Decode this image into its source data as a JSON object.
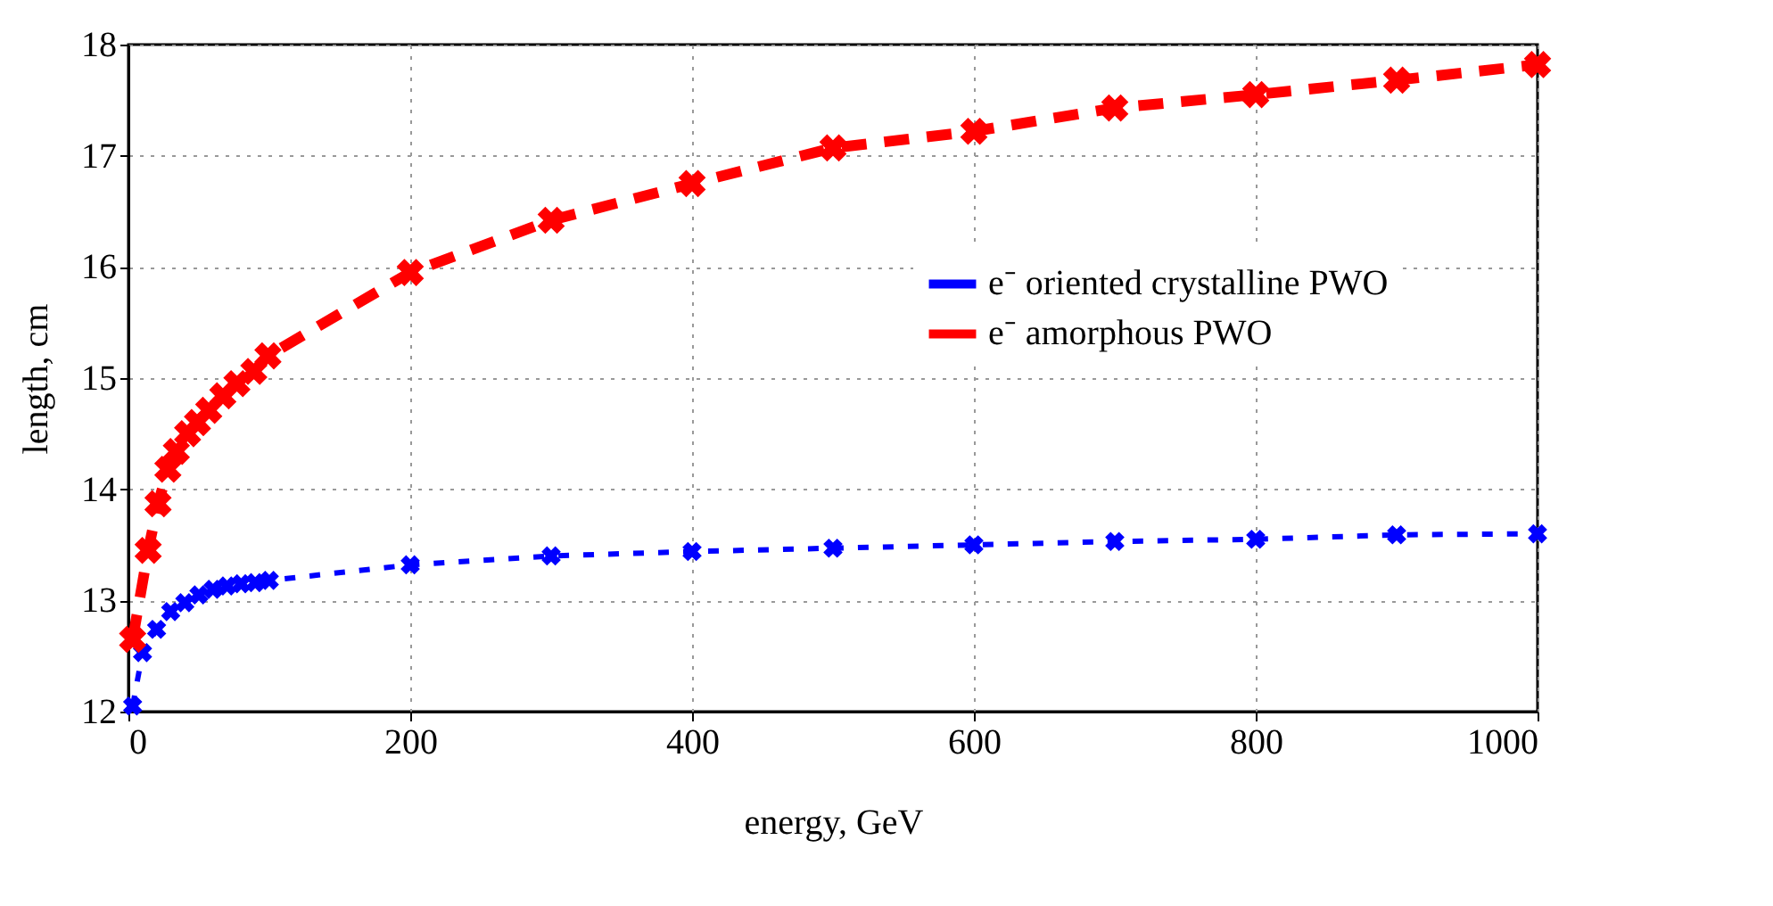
{
  "chart_data": {
    "type": "line",
    "xlabel": "energy, GeV",
    "ylabel": "length, cm",
    "xlim": [
      0,
      1000
    ],
    "xticks": [
      0,
      200,
      400,
      600,
      800,
      1000
    ],
    "ylim": [
      12,
      18
    ],
    "yticks": [
      12,
      13,
      14,
      15,
      16,
      17,
      18
    ],
    "grid": true,
    "legend": "top right",
    "marker": "cross",
    "line_style": "dashed",
    "series": [
      {
        "name": "e⁻ oriented crystalline PWO",
        "color": "#0000ff",
        "x": [
          3,
          10,
          20,
          30,
          40,
          50,
          60,
          70,
          80,
          90,
          100,
          200,
          300,
          400,
          500,
          600,
          700,
          800,
          900,
          1000
        ],
        "values": [
          12.05,
          12.53,
          12.74,
          12.9,
          12.98,
          13.05,
          13.1,
          13.13,
          13.15,
          13.16,
          13.18,
          13.32,
          13.4,
          13.44,
          13.47,
          13.5,
          13.53,
          13.55,
          13.59,
          13.6
        ]
      },
      {
        "name": "e⁻ amorphous PWO",
        "color": "#ff0000",
        "x": [
          3,
          14,
          21,
          28,
          34,
          42,
          49,
          57,
          67,
          77,
          89,
          99,
          200,
          300,
          400,
          500,
          600,
          700,
          800,
          900,
          1000
        ],
        "values": [
          12.65,
          13.45,
          13.87,
          14.18,
          14.34,
          14.5,
          14.6,
          14.71,
          14.84,
          14.95,
          15.06,
          15.2,
          15.95,
          16.42,
          16.75,
          17.07,
          17.22,
          17.43,
          17.55,
          17.68,
          17.82
        ]
      }
    ]
  }
}
